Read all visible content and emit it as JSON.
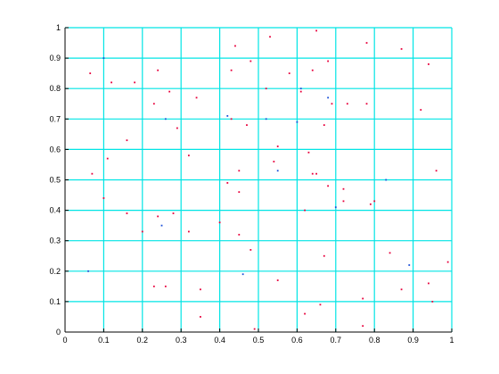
{
  "chart_data": {
    "type": "scatter",
    "title": "",
    "xlabel": "",
    "ylabel": "",
    "xlim": [
      0,
      1
    ],
    "ylim": [
      0,
      1
    ],
    "grid": true,
    "x_ticks": [
      "0",
      "0.1",
      "0.2",
      "0.3",
      "0.4",
      "0.5",
      "0.6",
      "0.7",
      "0.8",
      "0.9",
      "1"
    ],
    "y_ticks": [
      "0",
      "0.1",
      "0.2",
      "0.3",
      "0.4",
      "0.5",
      "0.6",
      "0.7",
      "0.8",
      "0.9",
      "1"
    ],
    "colors": {
      "grid": "#00e5e5",
      "points_red": "#e8003c",
      "points_blue": "#1a4fd8",
      "axes": "#000000"
    },
    "series": [
      {
        "color": "red",
        "points": [
          [
            0.065,
            0.85
          ],
          [
            0.12,
            0.82
          ],
          [
            0.18,
            0.82
          ],
          [
            0.24,
            0.86
          ],
          [
            0.27,
            0.79
          ],
          [
            0.43,
            0.86
          ],
          [
            0.44,
            0.94
          ],
          [
            0.48,
            0.89
          ],
          [
            0.53,
            0.97
          ],
          [
            0.58,
            0.85
          ],
          [
            0.64,
            0.86
          ],
          [
            0.65,
            0.99
          ],
          [
            0.68,
            0.89
          ],
          [
            0.78,
            0.95
          ],
          [
            0.87,
            0.93
          ],
          [
            0.94,
            0.88
          ],
          [
            0.16,
            0.63
          ],
          [
            0.23,
            0.75
          ],
          [
            0.29,
            0.67
          ],
          [
            0.34,
            0.77
          ],
          [
            0.43,
            0.7
          ],
          [
            0.47,
            0.68
          ],
          [
            0.52,
            0.8
          ],
          [
            0.55,
            0.61
          ],
          [
            0.61,
            0.79
          ],
          [
            0.67,
            0.68
          ],
          [
            0.69,
            0.75
          ],
          [
            0.73,
            0.75
          ],
          [
            0.78,
            0.75
          ],
          [
            0.92,
            0.73
          ],
          [
            0.07,
            0.52
          ],
          [
            0.11,
            0.57
          ],
          [
            0.32,
            0.58
          ],
          [
            0.42,
            0.49
          ],
          [
            0.45,
            0.53
          ],
          [
            0.54,
            0.56
          ],
          [
            0.63,
            0.59
          ],
          [
            0.64,
            0.52
          ],
          [
            0.65,
            0.52
          ],
          [
            0.68,
            0.48
          ],
          [
            0.72,
            0.47
          ],
          [
            0.96,
            0.53
          ],
          [
            0.1,
            0.44
          ],
          [
            0.16,
            0.39
          ],
          [
            0.24,
            0.38
          ],
          [
            0.28,
            0.39
          ],
          [
            0.4,
            0.36
          ],
          [
            0.45,
            0.46
          ],
          [
            0.62,
            0.4
          ],
          [
            0.72,
            0.43
          ],
          [
            0.79,
            0.42
          ],
          [
            0.8,
            0.43
          ],
          [
            0.2,
            0.33
          ],
          [
            0.32,
            0.33
          ],
          [
            0.45,
            0.32
          ],
          [
            0.48,
            0.27
          ],
          [
            0.67,
            0.25
          ],
          [
            0.84,
            0.26
          ],
          [
            0.23,
            0.15
          ],
          [
            0.26,
            0.15
          ],
          [
            0.35,
            0.14
          ],
          [
            0.55,
            0.17
          ],
          [
            0.77,
            0.11
          ],
          [
            0.87,
            0.14
          ],
          [
            0.94,
            0.16
          ],
          [
            0.35,
            0.05
          ],
          [
            0.62,
            0.06
          ],
          [
            0.66,
            0.09
          ],
          [
            0.77,
            0.02
          ],
          [
            0.49,
            0.01
          ],
          [
            0.95,
            0.1
          ],
          [
            0.99,
            0.23
          ]
        ]
      },
      {
        "color": "blue",
        "points": [
          [
            0.1,
            0.9
          ],
          [
            0.26,
            0.7
          ],
          [
            0.42,
            0.71
          ],
          [
            0.52,
            0.7
          ],
          [
            0.6,
            0.69
          ],
          [
            0.68,
            0.77
          ],
          [
            0.61,
            0.8
          ],
          [
            0.83,
            0.5
          ],
          [
            0.06,
            0.2
          ],
          [
            0.89,
            0.22
          ],
          [
            0.46,
            0.19
          ],
          [
            0.7,
            0.41
          ],
          [
            0.25,
            0.35
          ],
          [
            0.55,
            0.53
          ]
        ]
      }
    ]
  }
}
